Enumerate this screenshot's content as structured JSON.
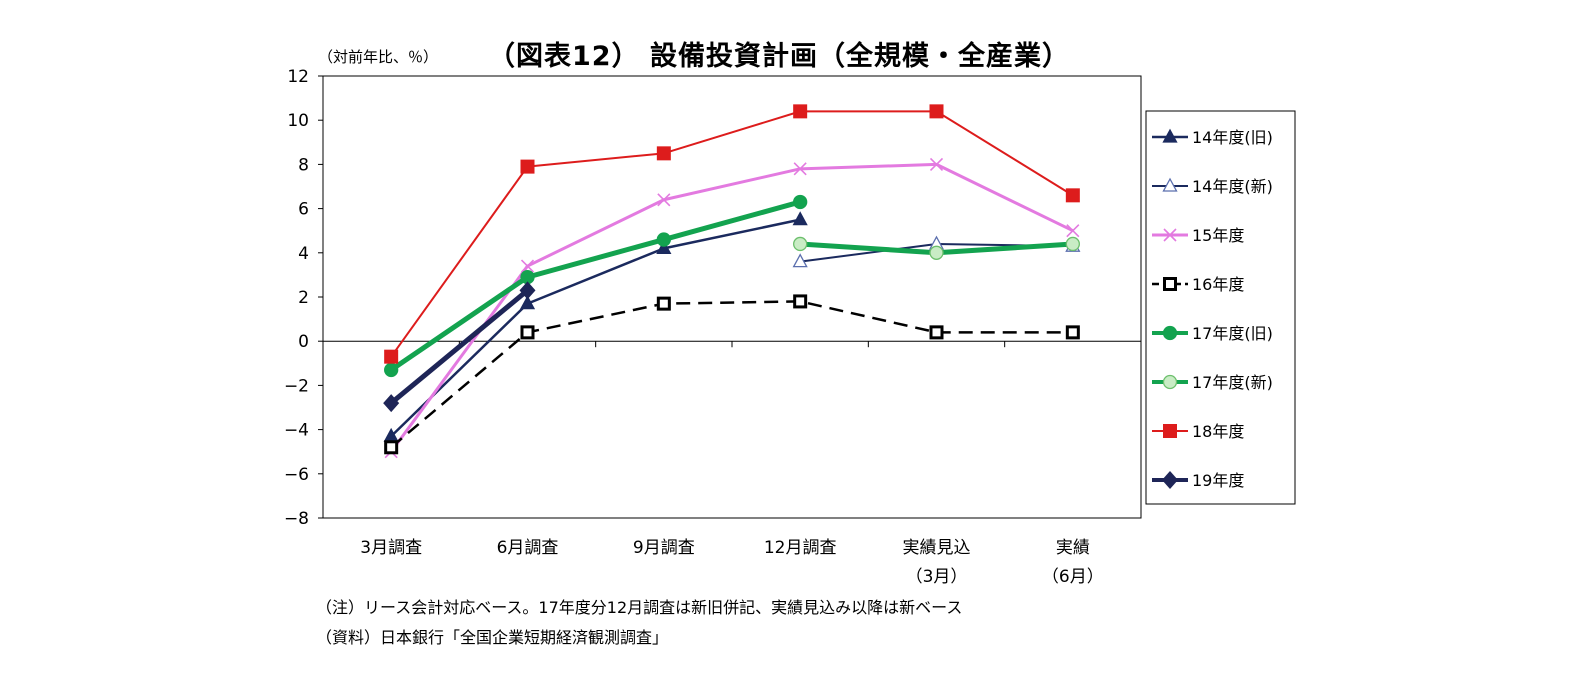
{
  "title": "（図表12） 設備投資計画（全規模・全産業）",
  "unit_label": "（対前年比、％）",
  "notes": {
    "note1": "（注）リース会計対応ベース。17年度分12月調査は新旧併記、実績見込み以降は新ベース",
    "note2": "（資料）日本銀行「全国企業短期経済観測調査」"
  },
  "chart_data": {
    "type": "line",
    "title": "（図表12） 設備投資計画（全規模・全産業）",
    "ylabel": "（対前年比、％）",
    "ylim": [
      -8,
      12
    ],
    "yticks": [
      -8,
      -6,
      -4,
      -2,
      0,
      2,
      4,
      6,
      8,
      10,
      12
    ],
    "categories": [
      "3月調査",
      "6月調査",
      "9月調査",
      "12月調査",
      "実績見込\n（3月）",
      "実績\n（6月）"
    ],
    "grid": false,
    "legend": "right",
    "series": [
      {
        "name": "14年度(旧)",
        "values": [
          -4.3,
          1.7,
          4.2,
          5.5,
          null,
          null
        ],
        "color": "#1b2a5e",
        "marker": "triangle",
        "filled": true,
        "dash": false,
        "width": 2.5
      },
      {
        "name": "14年度(新)",
        "values": [
          null,
          null,
          null,
          3.6,
          4.4,
          4.3
        ],
        "color": "#1b2a5e",
        "marker": "triangle",
        "filled": false,
        "dash": false,
        "width": 2
      },
      {
        "name": "15年度",
        "values": [
          -5.0,
          3.4,
          6.4,
          7.8,
          8.0,
          5.0
        ],
        "color": "#e37ae0",
        "marker": "cross",
        "filled": false,
        "dash": false,
        "width": 3
      },
      {
        "name": "16年度",
        "values": [
          -4.8,
          0.4,
          1.7,
          1.8,
          0.4,
          0.4
        ],
        "color": "#000000",
        "marker": "square",
        "filled": false,
        "dash": true,
        "width": 2.5
      },
      {
        "name": "17年度(旧)",
        "values": [
          -1.3,
          2.9,
          4.6,
          6.3,
          null,
          null
        ],
        "color": "#13a34f",
        "marker": "circle",
        "filled": true,
        "dash": false,
        "width": 5
      },
      {
        "name": "17年度(新)",
        "values": [
          null,
          null,
          null,
          4.4,
          4.0,
          4.4
        ],
        "color": "#13a34f",
        "marker": "circle",
        "filled": false,
        "dash": false,
        "width": 5
      },
      {
        "name": "18年度",
        "values": [
          -0.7,
          7.9,
          8.5,
          10.4,
          10.4,
          6.6
        ],
        "color": "#dd1c1c",
        "marker": "square",
        "filled": true,
        "dash": false,
        "width": 2
      },
      {
        "name": "19年度",
        "values": [
          -2.8,
          2.3,
          null,
          null,
          null,
          null
        ],
        "color": "#1e2557",
        "marker": "diamond",
        "filled": true,
        "dash": false,
        "width": 5
      }
    ]
  }
}
